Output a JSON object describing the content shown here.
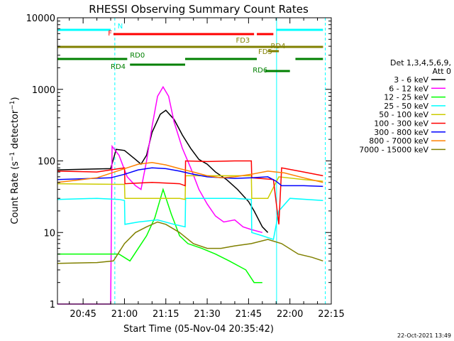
{
  "chart_data": {
    "type": "line",
    "title": "RHESSI Observing Summary Count Rates",
    "xlabel": "Start Time (05-Nov-04 20:35:42)",
    "ylabel": "Count Rate (s⁻¹ detector⁻¹)",
    "ylabel_parts": {
      "pre": "Count Rate (s",
      "sup1": "−1",
      "mid": " detector",
      "sup2": "−1",
      "post": ")"
    },
    "yscale": "log",
    "ylim": [
      1,
      10000
    ],
    "y_ticks": [
      1,
      10,
      100,
      1000,
      10000
    ],
    "xlim": [
      "20:35:42",
      "22:15:00"
    ],
    "x_ticks": [
      "20:45",
      "21:00",
      "21:15",
      "21:30",
      "21:45",
      "22:00",
      "22:15"
    ],
    "legend_title": [
      "Det 1,3,4,5,6,9,",
      "Att 0"
    ],
    "legend_position": "right",
    "footer": "22-Oct-2021 13:49",
    "series": [
      {
        "name": "3 - 6 keV",
        "color": "#000000",
        "points": [
          [
            "20:35:42",
            75
          ],
          [
            "20:55:00",
            78
          ],
          [
            "20:57:00",
            145
          ],
          [
            "21:00:00",
            140
          ],
          [
            "21:04:00",
            105
          ],
          [
            "21:06:00",
            90
          ],
          [
            "21:08:00",
            120
          ],
          [
            "21:10:00",
            250
          ],
          [
            "21:13:00",
            450
          ],
          [
            "21:15:00",
            510
          ],
          [
            "21:18:00",
            380
          ],
          [
            "21:21:00",
            230
          ],
          [
            "21:24:00",
            150
          ],
          [
            "21:27:00",
            105
          ],
          [
            "21:30:00",
            90
          ],
          [
            "21:33:00",
            70
          ],
          [
            "21:37:00",
            55
          ],
          [
            "21:41:00",
            40
          ],
          [
            "21:45:00",
            27
          ],
          [
            "21:47:00",
            20
          ],
          [
            "21:50:00",
            12
          ],
          [
            "21:52:00",
            10
          ]
        ]
      },
      {
        "name": "6 - 12 keV",
        "color": "#ff00ff",
        "points": [
          [
            "20:35:42",
            1
          ],
          [
            "20:55:00",
            1
          ],
          [
            "20:55:30",
            160
          ],
          [
            "20:58:00",
            120
          ],
          [
            "21:01:00",
            60
          ],
          [
            "21:04:00",
            45
          ],
          [
            "21:06:00",
            40
          ],
          [
            "21:08:00",
            100
          ],
          [
            "21:10:00",
            300
          ],
          [
            "21:12:00",
            800
          ],
          [
            "21:14:00",
            1080
          ],
          [
            "21:16:00",
            800
          ],
          [
            "21:18:00",
            350
          ],
          [
            "21:21:00",
            150
          ],
          [
            "21:24:00",
            80
          ],
          [
            "21:27:00",
            40
          ],
          [
            "21:30:00",
            25
          ],
          [
            "21:33:00",
            17
          ],
          [
            "21:36:00",
            14
          ],
          [
            "21:40:00",
            15
          ],
          [
            "21:43:00",
            12
          ],
          [
            "21:46:00",
            11
          ],
          [
            "21:50:00",
            10
          ]
        ]
      },
      {
        "name": "12 - 25 keV",
        "color": "#00ff00",
        "points": [
          [
            "20:35:42",
            5
          ],
          [
            "20:55:00",
            5
          ],
          [
            "20:58:00",
            5
          ],
          [
            "21:02:00",
            4
          ],
          [
            "21:05:00",
            6
          ],
          [
            "21:08:00",
            9
          ],
          [
            "21:11:00",
            16
          ],
          [
            "21:14:00",
            40
          ],
          [
            "21:17:00",
            18
          ],
          [
            "21:20:00",
            9
          ],
          [
            "21:23:00",
            7
          ],
          [
            "21:28:00",
            6
          ],
          [
            "21:33:00",
            5
          ],
          [
            "21:38:00",
            4
          ],
          [
            "21:44:00",
            3
          ],
          [
            "21:47:00",
            2
          ],
          [
            "21:50:00",
            2
          ]
        ]
      },
      {
        "name": "25 - 50 keV",
        "color": "#00ffff",
        "points": [
          [
            "20:35:42",
            29
          ],
          [
            "20:50:00",
            30
          ],
          [
            "20:58:00",
            29
          ],
          [
            "21:00:00",
            28
          ],
          [
            "21:00:10",
            13
          ],
          [
            "21:05:00",
            14
          ],
          [
            "21:12:00",
            15
          ],
          [
            "21:18:00",
            13
          ],
          [
            "21:22:00",
            12
          ],
          [
            "21:22:10",
            30
          ],
          [
            "21:30:00",
            30
          ],
          [
            "21:40:00",
            30
          ],
          [
            "21:46:00",
            29
          ],
          [
            "21:46:10",
            10
          ],
          [
            "21:50:00",
            9
          ],
          [
            "21:54:00",
            8
          ],
          [
            "21:56:00",
            20
          ],
          [
            "22:00:00",
            30
          ],
          [
            "22:12:00",
            28
          ]
        ]
      },
      {
        "name": "50 - 100 keV",
        "color": "#cccc00",
        "points": [
          [
            "20:35:42",
            48
          ],
          [
            "20:58:00",
            47
          ],
          [
            "21:00:00",
            47
          ],
          [
            "21:00:10",
            30
          ],
          [
            "21:10:00",
            30
          ],
          [
            "21:20:00",
            30
          ],
          [
            "21:22:00",
            29
          ],
          [
            "21:22:10",
            62
          ],
          [
            "21:30:00",
            62
          ],
          [
            "21:40:00",
            62
          ],
          [
            "21:46:00",
            62
          ],
          [
            "21:46:10",
            30
          ],
          [
            "21:52:00",
            30
          ],
          [
            "21:56:00",
            60
          ],
          [
            "22:05:00",
            55
          ],
          [
            "22:12:00",
            52
          ]
        ]
      },
      {
        "name": "100 - 300 keV",
        "color": "#ff0000",
        "points": [
          [
            "20:35:42",
            72
          ],
          [
            "20:50:00",
            70
          ],
          [
            "20:58:00",
            78
          ],
          [
            "21:00:00",
            80
          ],
          [
            "21:00:10",
            48
          ],
          [
            "21:10:00",
            50
          ],
          [
            "21:20:00",
            48
          ],
          [
            "21:22:00",
            45
          ],
          [
            "21:22:10",
            100
          ],
          [
            "21:30:00",
            98
          ],
          [
            "21:40:00",
            100
          ],
          [
            "21:46:00",
            100
          ],
          [
            "21:46:10",
            58
          ],
          [
            "21:54:00",
            55
          ],
          [
            "21:56:00",
            13
          ],
          [
            "21:57:00",
            80
          ],
          [
            "22:05:00",
            70
          ],
          [
            "22:12:00",
            62
          ]
        ]
      },
      {
        "name": "300 - 800 keV",
        "color": "#0000ff",
        "points": [
          [
            "20:35:42",
            55
          ],
          [
            "20:55:00",
            58
          ],
          [
            "21:00:00",
            65
          ],
          [
            "21:05:00",
            75
          ],
          [
            "21:10:00",
            80
          ],
          [
            "21:15:00",
            78
          ],
          [
            "21:20:00",
            72
          ],
          [
            "21:25:00",
            65
          ],
          [
            "21:30:00",
            60
          ],
          [
            "21:40:00",
            57
          ],
          [
            "21:46:00",
            58
          ],
          [
            "21:52:00",
            60
          ],
          [
            "21:55:00",
            52
          ],
          [
            "21:57:00",
            45
          ],
          [
            "22:05:00",
            45
          ],
          [
            "22:12:00",
            44
          ]
        ]
      },
      {
        "name": "800 - 7000 keV",
        "color": "#ff8000",
        "points": [
          [
            "20:35:42",
            50
          ],
          [
            "20:50:00",
            58
          ],
          [
            "21:00:00",
            78
          ],
          [
            "21:05:00",
            90
          ],
          [
            "21:10:00",
            95
          ],
          [
            "21:15:00",
            88
          ],
          [
            "21:20:00",
            78
          ],
          [
            "21:25:00",
            70
          ],
          [
            "21:30:00",
            62
          ],
          [
            "21:35:00",
            58
          ],
          [
            "21:40:00",
            60
          ],
          [
            "21:46:00",
            65
          ],
          [
            "21:52:00",
            72
          ],
          [
            "21:58:00",
            68
          ],
          [
            "22:05:00",
            58
          ],
          [
            "22:12:00",
            50
          ]
        ]
      },
      {
        "name": "7000 - 15000 keV",
        "color": "#808000",
        "points": [
          [
            "20:35:42",
            3.7
          ],
          [
            "20:50:00",
            3.8
          ],
          [
            "20:56:00",
            4
          ],
          [
            "21:00:00",
            7
          ],
          [
            "21:04:00",
            10
          ],
          [
            "21:08:00",
            12
          ],
          [
            "21:12:00",
            14
          ],
          [
            "21:15:00",
            13
          ],
          [
            "21:20:00",
            10
          ],
          [
            "21:25:00",
            7
          ],
          [
            "21:30:00",
            6
          ],
          [
            "21:35:00",
            6
          ],
          [
            "21:40:00",
            6.5
          ],
          [
            "21:46:00",
            7
          ],
          [
            "21:52:00",
            8
          ],
          [
            "21:57:00",
            7
          ],
          [
            "22:03:00",
            5
          ],
          [
            "22:08:00",
            4.5
          ],
          [
            "22:12:00",
            4
          ]
        ]
      }
    ],
    "flags": [
      {
        "label": "N",
        "color": "#00ffff",
        "segments": [
          [
            "20:35:42",
            "20:55:00"
          ],
          [
            "21:55:00",
            "22:12:00"
          ]
        ]
      },
      {
        "label": "F",
        "color": "#ff0000",
        "segments": [
          [
            "20:56:00",
            "21:47:00"
          ],
          [
            "21:48:00",
            "21:54:00"
          ]
        ]
      },
      {
        "label": "FD3",
        "color": "#808000",
        "segments": [
          [
            "20:35:42",
            "22:12:00"
          ]
        ]
      },
      {
        "label": "RD4",
        "color": "#808000",
        "segments": [
          [
            "21:56:00",
            "22:12:00"
          ]
        ]
      },
      {
        "label": "FD5",
        "color": "#808000",
        "segments": [
          [
            "21:52:00",
            "21:56:00"
          ]
        ]
      },
      {
        "label": "RD0",
        "color": "#008000",
        "segments": [
          [
            "20:35:42",
            "21:01:00"
          ],
          [
            "21:22:00",
            "21:48:00"
          ],
          [
            "22:02:00",
            "22:12:00"
          ]
        ]
      },
      {
        "label": "RD4",
        "color": "#008000",
        "segments": [
          [
            "21:02:00",
            "21:22:00"
          ]
        ]
      },
      {
        "label": "RD6",
        "color": "#008000",
        "segments": [
          [
            "21:51:00",
            "22:00:00"
          ]
        ]
      }
    ],
    "vertical_markers": [
      {
        "time": "20:56:30",
        "style": "dashed",
        "color": "#00ffff"
      },
      {
        "time": "21:55:10",
        "style": "solid",
        "color": "#00ffff"
      },
      {
        "time": "22:12:50",
        "style": "dashed",
        "color": "#00ffff"
      }
    ]
  }
}
